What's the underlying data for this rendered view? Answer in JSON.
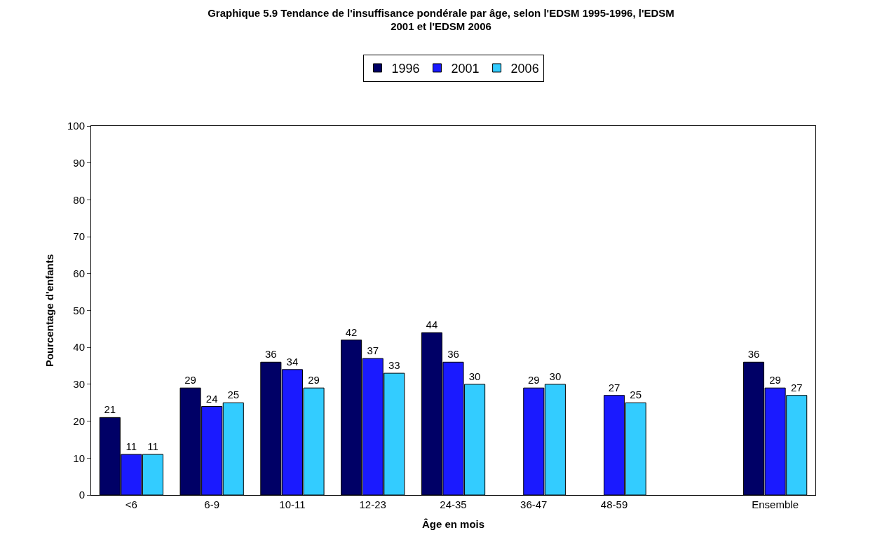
{
  "chart_data": {
    "type": "bar",
    "title": "Graphique 5.9 Tendance de l'insuffisance pondérale par âge, selon l'EDSM 1995-1996, l'EDSM\n2001 et l'EDSM 2006",
    "xlabel": "Âge en mois",
    "ylabel": "Pourcentage d'enfants",
    "categories": [
      "<6",
      "6-9",
      "10-11",
      "12-23",
      "24-35",
      "36-47",
      "48-59",
      null,
      "Ensemble"
    ],
    "series": [
      {
        "name": "1996",
        "color": "#000066",
        "values": [
          21,
          29,
          36,
          42,
          44,
          null,
          null,
          null,
          36
        ]
      },
      {
        "name": "2001",
        "color": "#1a1aff",
        "values": [
          11,
          24,
          34,
          37,
          36,
          29,
          27,
          null,
          29
        ]
      },
      {
        "name": "2006",
        "color": "#33ccff",
        "values": [
          11,
          25,
          29,
          33,
          30,
          30,
          25,
          null,
          27
        ]
      }
    ],
    "ylim": [
      0,
      100
    ],
    "yticks": [
      0,
      10,
      20,
      30,
      40,
      50,
      60,
      70,
      80,
      90,
      100
    ],
    "legend": "top",
    "data_labels": true
  }
}
